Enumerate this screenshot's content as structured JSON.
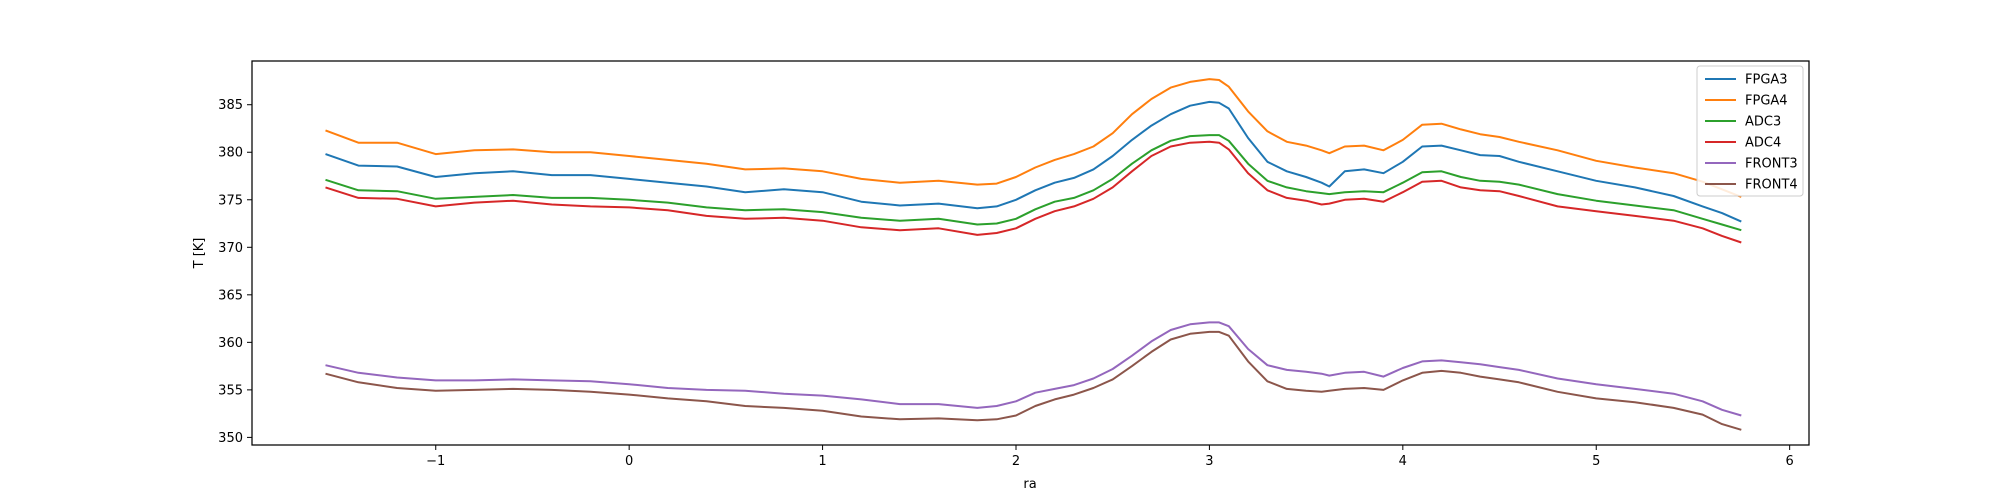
{
  "chart_data": {
    "type": "line",
    "title": "",
    "xlabel": "ra",
    "ylabel": "T [K]",
    "xlim": [
      -1.95,
      6.1
    ],
    "ylim": [
      349.2,
      389.6
    ],
    "xticks": [
      -1,
      0,
      1,
      2,
      3,
      4,
      5,
      6
    ],
    "xtick_labels": [
      "−1",
      "0",
      "1",
      "2",
      "3",
      "4",
      "5",
      "6"
    ],
    "yticks": [
      350,
      355,
      360,
      365,
      370,
      375,
      380,
      385
    ],
    "ytick_labels": [
      "350",
      "355",
      "360",
      "365",
      "370",
      "375",
      "380",
      "385"
    ],
    "grid": false,
    "legend_position": "top-right",
    "x": [
      -1.57,
      -1.4,
      -1.2,
      -1.0,
      -0.8,
      -0.6,
      -0.4,
      -0.2,
      0.0,
      0.2,
      0.4,
      0.6,
      0.8,
      1.0,
      1.2,
      1.4,
      1.6,
      1.8,
      1.9,
      2.0,
      2.1,
      2.2,
      2.3,
      2.4,
      2.5,
      2.6,
      2.7,
      2.8,
      2.9,
      3.0,
      3.05,
      3.1,
      3.2,
      3.3,
      3.4,
      3.5,
      3.58,
      3.62,
      3.7,
      3.8,
      3.9,
      4.0,
      4.1,
      4.2,
      4.3,
      4.4,
      4.5,
      4.6,
      4.8,
      5.0,
      5.2,
      5.4,
      5.55,
      5.65,
      5.75
    ],
    "series": [
      {
        "name": "FPGA3",
        "color": "#1f77b4",
        "values": [
          379.8,
          378.6,
          378.5,
          377.4,
          377.8,
          378.0,
          377.6,
          377.6,
          377.2,
          376.8,
          376.4,
          375.8,
          376.1,
          375.8,
          374.8,
          374.4,
          374.6,
          374.1,
          374.3,
          375.0,
          376.0,
          376.8,
          377.3,
          378.2,
          379.6,
          381.3,
          382.8,
          384.0,
          384.9,
          385.3,
          385.2,
          384.6,
          381.5,
          379.0,
          378.0,
          377.4,
          376.8,
          376.4,
          378.0,
          378.2,
          377.8,
          379.0,
          380.6,
          380.7,
          380.2,
          379.7,
          379.6,
          379.0,
          378.0,
          377.0,
          376.3,
          375.4,
          374.3,
          373.6,
          372.7
        ]
      },
      {
        "name": "FPGA4",
        "color": "#ff7f0e",
        "values": [
          382.3,
          381.0,
          381.0,
          379.8,
          380.2,
          380.3,
          380.0,
          380.0,
          379.6,
          379.2,
          378.8,
          378.2,
          378.3,
          378.0,
          377.2,
          376.8,
          377.0,
          376.6,
          376.7,
          377.4,
          378.4,
          379.2,
          379.8,
          380.6,
          382.0,
          384.0,
          385.6,
          386.8,
          387.4,
          387.7,
          387.6,
          386.9,
          384.3,
          382.2,
          381.1,
          380.7,
          380.2,
          379.9,
          380.6,
          380.7,
          380.2,
          381.3,
          382.9,
          383.0,
          382.4,
          381.9,
          381.6,
          381.1,
          380.2,
          379.1,
          378.4,
          377.8,
          376.9,
          376.1,
          375.3
        ]
      },
      {
        "name": "ADC3",
        "color": "#2ca02c",
        "values": [
          377.1,
          376.0,
          375.9,
          375.1,
          375.3,
          375.5,
          375.2,
          375.2,
          375.0,
          374.7,
          374.2,
          373.9,
          374.0,
          373.7,
          373.1,
          372.8,
          373.0,
          372.4,
          372.5,
          373.0,
          374.0,
          374.8,
          375.2,
          376.0,
          377.2,
          378.8,
          380.2,
          381.2,
          381.7,
          381.8,
          381.8,
          381.2,
          378.8,
          377.0,
          376.3,
          375.9,
          375.7,
          375.6,
          375.8,
          375.9,
          375.8,
          376.8,
          377.9,
          378.0,
          377.4,
          377.0,
          376.9,
          376.6,
          375.6,
          374.9,
          374.4,
          373.9,
          373.0,
          372.4,
          371.8
        ]
      },
      {
        "name": "ADC4",
        "color": "#d62728",
        "values": [
          376.3,
          375.2,
          375.1,
          374.3,
          374.7,
          374.9,
          374.5,
          374.3,
          374.2,
          373.9,
          373.3,
          373.0,
          373.1,
          372.8,
          372.1,
          371.8,
          372.0,
          371.3,
          371.5,
          372.0,
          373.0,
          373.8,
          374.3,
          375.1,
          376.3,
          378.0,
          379.6,
          380.6,
          381.0,
          381.1,
          381.0,
          380.3,
          377.8,
          376.0,
          375.2,
          374.9,
          374.5,
          374.6,
          375.0,
          375.1,
          374.8,
          375.8,
          376.9,
          377.0,
          376.3,
          376.0,
          375.9,
          375.4,
          374.3,
          373.8,
          373.3,
          372.8,
          372.0,
          371.2,
          370.5
        ]
      },
      {
        "name": "FRONT3",
        "color": "#9467bd",
        "values": [
          357.6,
          356.8,
          356.3,
          356.0,
          356.0,
          356.1,
          356.0,
          355.9,
          355.6,
          355.2,
          355.0,
          354.9,
          354.6,
          354.4,
          354.0,
          353.5,
          353.5,
          353.1,
          353.3,
          353.8,
          354.7,
          355.1,
          355.5,
          356.2,
          357.2,
          358.6,
          360.1,
          361.3,
          361.9,
          362.1,
          362.1,
          361.7,
          359.3,
          357.6,
          357.1,
          356.9,
          356.7,
          356.5,
          356.8,
          356.9,
          356.4,
          357.3,
          358.0,
          358.1,
          357.9,
          357.7,
          357.4,
          357.1,
          356.2,
          355.6,
          355.1,
          354.6,
          353.8,
          352.9,
          352.3
        ]
      },
      {
        "name": "FRONT4",
        "color": "#8c564b",
        "values": [
          356.7,
          355.8,
          355.2,
          354.9,
          355.0,
          355.1,
          355.0,
          354.8,
          354.5,
          354.1,
          353.8,
          353.3,
          353.1,
          352.8,
          352.2,
          351.9,
          352.0,
          351.8,
          351.9,
          352.3,
          353.3,
          354.0,
          354.5,
          355.2,
          356.1,
          357.5,
          359.0,
          360.3,
          360.9,
          361.1,
          361.1,
          360.7,
          358.0,
          355.9,
          355.1,
          354.9,
          354.8,
          354.9,
          355.1,
          355.2,
          355.0,
          356.0,
          356.8,
          357.0,
          356.8,
          356.4,
          356.1,
          355.8,
          354.8,
          354.1,
          353.7,
          353.1,
          352.4,
          351.4,
          350.8
        ]
      }
    ]
  }
}
